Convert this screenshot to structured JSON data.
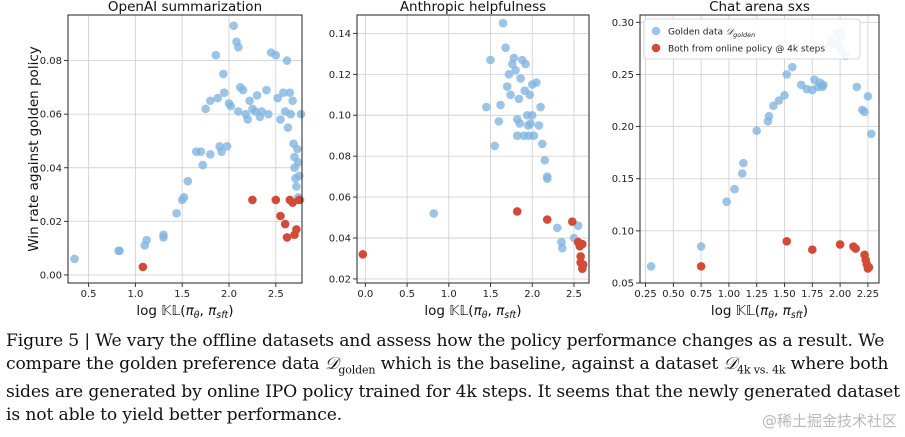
{
  "chart_data": [
    {
      "type": "scatter",
      "title": "OpenAI summarization",
      "xlabel": "log 𝕂𝕃(π",
      "ylabel": "Win rate against golden policy",
      "xlim": [
        0.28,
        2.78
      ],
      "ylim": [
        -0.003,
        0.097
      ],
      "xticks": [
        "0.5",
        "1.0",
        "1.5",
        "2.0",
        "2.5"
      ],
      "xtick_values": [
        0.5,
        1.0,
        1.5,
        2.0,
        2.5
      ],
      "yticks": [
        "0.00",
        "0.02",
        "0.04",
        "0.06",
        "0.08"
      ],
      "ytick_values": [
        0.0,
        0.02,
        0.04,
        0.06,
        0.08
      ],
      "grid": true,
      "series": [
        {
          "color": "#7fb3e0",
          "points": [
            [
              0.35,
              0.006
            ],
            [
              0.82,
              0.009
            ],
            [
              0.83,
              0.009
            ],
            [
              1.1,
              0.011
            ],
            [
              1.12,
              0.013
            ],
            [
              1.3,
              0.014
            ],
            [
              1.3,
              0.015
            ],
            [
              1.44,
              0.023
            ],
            [
              1.5,
              0.028
            ],
            [
              1.52,
              0.029
            ],
            [
              1.56,
              0.035
            ],
            [
              1.65,
              0.046
            ],
            [
              1.7,
              0.046
            ],
            [
              1.72,
              0.041
            ],
            [
              1.75,
              0.062
            ],
            [
              1.8,
              0.065
            ],
            [
              1.8,
              0.045
            ],
            [
              1.86,
              0.082
            ],
            [
              1.88,
              0.066
            ],
            [
              1.9,
              0.048
            ],
            [
              1.92,
              0.046
            ],
            [
              1.94,
              0.075
            ],
            [
              1.95,
              0.068
            ],
            [
              1.98,
              0.048
            ],
            [
              2.0,
              0.064
            ],
            [
              2.02,
              0.063
            ],
            [
              2.05,
              0.093
            ],
            [
              2.08,
              0.087
            ],
            [
              2.1,
              0.085
            ],
            [
              2.1,
              0.061
            ],
            [
              2.12,
              0.07
            ],
            [
              2.15,
              0.069
            ],
            [
              2.18,
              0.06
            ],
            [
              2.2,
              0.058
            ],
            [
              2.22,
              0.065
            ],
            [
              2.25,
              0.062
            ],
            [
              2.28,
              0.061
            ],
            [
              2.3,
              0.067
            ],
            [
              2.33,
              0.059
            ],
            [
              2.35,
              0.061
            ],
            [
              2.4,
              0.069
            ],
            [
              2.42,
              0.06
            ],
            [
              2.45,
              0.083
            ],
            [
              2.5,
              0.082
            ],
            [
              2.52,
              0.066
            ],
            [
              2.55,
              0.058
            ],
            [
              2.58,
              0.068
            ],
            [
              2.6,
              0.061
            ],
            [
              2.62,
              0.08
            ],
            [
              2.63,
              0.055
            ],
            [
              2.65,
              0.068
            ],
            [
              2.66,
              0.06
            ],
            [
              2.68,
              0.065
            ],
            [
              2.69,
              0.049
            ],
            [
              2.7,
              0.044
            ],
            [
              2.7,
              0.04
            ],
            [
              2.71,
              0.036
            ],
            [
              2.72,
              0.033
            ],
            [
              2.73,
              0.047
            ],
            [
              2.74,
              0.042
            ],
            [
              2.74,
              0.029
            ],
            [
              2.75,
              0.037
            ],
            [
              2.76,
              0.028
            ],
            [
              2.77,
              0.06
            ]
          ]
        },
        {
          "color": "#d24b37",
          "points": [
            [
              1.08,
              0.003
            ],
            [
              2.25,
              0.028
            ],
            [
              2.5,
              0.028
            ],
            [
              2.55,
              0.022
            ],
            [
              2.6,
              0.019
            ],
            [
              2.62,
              0.014
            ],
            [
              2.65,
              0.028
            ],
            [
              2.68,
              0.027
            ],
            [
              2.7,
              0.015
            ],
            [
              2.72,
              0.017
            ],
            [
              2.75,
              0.028
            ]
          ]
        }
      ]
    },
    {
      "type": "scatter",
      "title": "Anthropic helpfulness",
      "xlabel": "log 𝕂𝕃(π",
      "ylabel": "",
      "xlim": [
        -0.1,
        2.68
      ],
      "ylim": [
        0.018,
        0.149
      ],
      "xticks": [
        "0.0",
        "0.5",
        "1.0",
        "1.5",
        "2.0",
        "2.5"
      ],
      "xtick_values": [
        0.0,
        0.5,
        1.0,
        1.5,
        2.0,
        2.5
      ],
      "yticks": [
        "0.02",
        "0.04",
        "0.06",
        "0.08",
        "0.10",
        "0.12",
        "0.14"
      ],
      "ytick_values": [
        0.02,
        0.04,
        0.06,
        0.08,
        0.1,
        0.12,
        0.14
      ],
      "grid": true,
      "series": [
        {
          "color": "#7fb3e0",
          "points": [
            [
              0.82,
              0.052
            ],
            [
              1.45,
              0.104
            ],
            [
              1.5,
              0.127
            ],
            [
              1.55,
              0.085
            ],
            [
              1.6,
              0.097
            ],
            [
              1.62,
              0.105
            ],
            [
              1.65,
              0.145
            ],
            [
              1.68,
              0.133
            ],
            [
              1.7,
              0.114
            ],
            [
              1.72,
              0.12
            ],
            [
              1.74,
              0.11
            ],
            [
              1.76,
              0.125
            ],
            [
              1.78,
              0.128
            ],
            [
              1.8,
              0.122
            ],
            [
              1.82,
              0.098
            ],
            [
              1.82,
              0.09
            ],
            [
              1.84,
              0.108
            ],
            [
              1.85,
              0.096
            ],
            [
              1.86,
              0.118
            ],
            [
              1.88,
              0.127
            ],
            [
              1.9,
              0.09
            ],
            [
              1.91,
              0.112
            ],
            [
              1.92,
              0.125
            ],
            [
              1.94,
              0.1
            ],
            [
              1.95,
              0.095
            ],
            [
              1.96,
              0.09
            ],
            [
              1.97,
              0.11
            ],
            [
              1.98,
              0.096
            ],
            [
              2.0,
              0.1
            ],
            [
              2.0,
              0.115
            ],
            [
              2.02,
              0.09
            ],
            [
              2.05,
              0.116
            ],
            [
              2.08,
              0.095
            ],
            [
              2.1,
              0.104
            ],
            [
              2.12,
              0.086
            ],
            [
              2.15,
              0.078
            ],
            [
              2.18,
              0.069
            ],
            [
              2.18,
              0.07
            ],
            [
              2.3,
              0.045
            ],
            [
              2.35,
              0.038
            ],
            [
              2.36,
              0.035
            ],
            [
              2.5,
              0.04
            ],
            [
              2.55,
              0.046
            ]
          ]
        },
        {
          "color": "#d24b37",
          "points": [
            [
              -0.03,
              0.032
            ],
            [
              1.82,
              0.053
            ],
            [
              2.18,
              0.049
            ],
            [
              2.48,
              0.048
            ],
            [
              2.55,
              0.038
            ],
            [
              2.57,
              0.036
            ],
            [
              2.58,
              0.031
            ],
            [
              2.58,
              0.028
            ],
            [
              2.6,
              0.025
            ],
            [
              2.6,
              0.037
            ],
            [
              2.61,
              0.027
            ]
          ]
        }
      ]
    },
    {
      "type": "scatter",
      "title": "Chat arena sxs",
      "xlabel": "log 𝕂𝕃(π",
      "ylabel": "",
      "xlim": [
        0.2,
        2.35
      ],
      "ylim": [
        0.05,
        0.307
      ],
      "xticks": [
        "0.25",
        "0.50",
        "0.75",
        "1.00",
        "1.25",
        "1.50",
        "1.75",
        "2.00",
        "2.25"
      ],
      "xtick_values": [
        0.25,
        0.5,
        0.75,
        1.0,
        1.25,
        1.5,
        1.75,
        2.0,
        2.25
      ],
      "yticks": [
        "0.05",
        "0.10",
        "0.15",
        "0.20",
        "0.25",
        "0.30"
      ],
      "ytick_values": [
        0.05,
        0.1,
        0.15,
        0.2,
        0.25,
        0.3
      ],
      "grid": true,
      "legend_position": "top-left",
      "series": [
        {
          "name_parts": [
            "Golden data ",
            "𝒟",
            "golden"
          ],
          "color": "#7fb3e0",
          "points": [
            [
              0.3,
              0.066
            ],
            [
              0.75,
              0.085
            ],
            [
              0.98,
              0.128
            ],
            [
              1.05,
              0.14
            ],
            [
              1.12,
              0.155
            ],
            [
              1.13,
              0.165
            ],
            [
              1.25,
              0.196
            ],
            [
              1.35,
              0.205
            ],
            [
              1.36,
              0.21
            ],
            [
              1.4,
              0.22
            ],
            [
              1.45,
              0.225
            ],
            [
              1.5,
              0.23
            ],
            [
              1.52,
              0.25
            ],
            [
              1.57,
              0.257
            ],
            [
              1.65,
              0.24
            ],
            [
              1.7,
              0.236
            ],
            [
              1.75,
              0.235
            ],
            [
              1.77,
              0.245
            ],
            [
              1.8,
              0.238
            ],
            [
              1.82,
              0.242
            ],
            [
              1.84,
              0.238
            ],
            [
              1.85,
              0.24
            ],
            [
              1.9,
              0.278
            ],
            [
              1.92,
              0.283
            ],
            [
              1.95,
              0.28
            ],
            [
              1.97,
              0.29
            ],
            [
              1.98,
              0.281
            ],
            [
              2.0,
              0.275
            ],
            [
              2.0,
              0.29
            ],
            [
              2.01,
              0.287
            ],
            [
              2.02,
              0.272
            ],
            [
              2.05,
              0.268
            ],
            [
              2.15,
              0.238
            ],
            [
              2.2,
              0.216
            ],
            [
              2.22,
              0.214
            ],
            [
              2.25,
              0.229
            ],
            [
              2.28,
              0.193
            ]
          ]
        },
        {
          "name": "Both from online policy @ 4k steps",
          "color": "#d24b37",
          "points": [
            [
              0.75,
              0.066
            ],
            [
              1.52,
              0.09
            ],
            [
              1.75,
              0.082
            ],
            [
              2.0,
              0.087
            ],
            [
              2.12,
              0.085
            ],
            [
              2.14,
              0.083
            ],
            [
              2.22,
              0.077
            ],
            [
              2.23,
              0.072
            ],
            [
              2.24,
              0.068
            ],
            [
              2.25,
              0.064
            ],
            [
              2.26,
              0.065
            ]
          ]
        }
      ]
    }
  ],
  "xlabel_parts": [
    "log ",
    "𝕂𝕃",
    "(",
    "π",
    "θ",
    ", ",
    "π",
    "sft",
    ")"
  ],
  "caption": {
    "p1": "Figure 5 | We vary the offline datasets and assess how the policy performance changes as a result. We compare the golden preference data ",
    "m1": "𝒟",
    "s1": "golden",
    "p2": " which is the baseline, against a dataset ",
    "m2": "𝒟",
    "s2": "4k vs. 4k",
    "p3": " where both sides are generated by online IPO policy trained for 4k steps. It seems that the newly generated dataset is not able to yield better performance."
  },
  "watermark": "@稀土掘金技术社区"
}
